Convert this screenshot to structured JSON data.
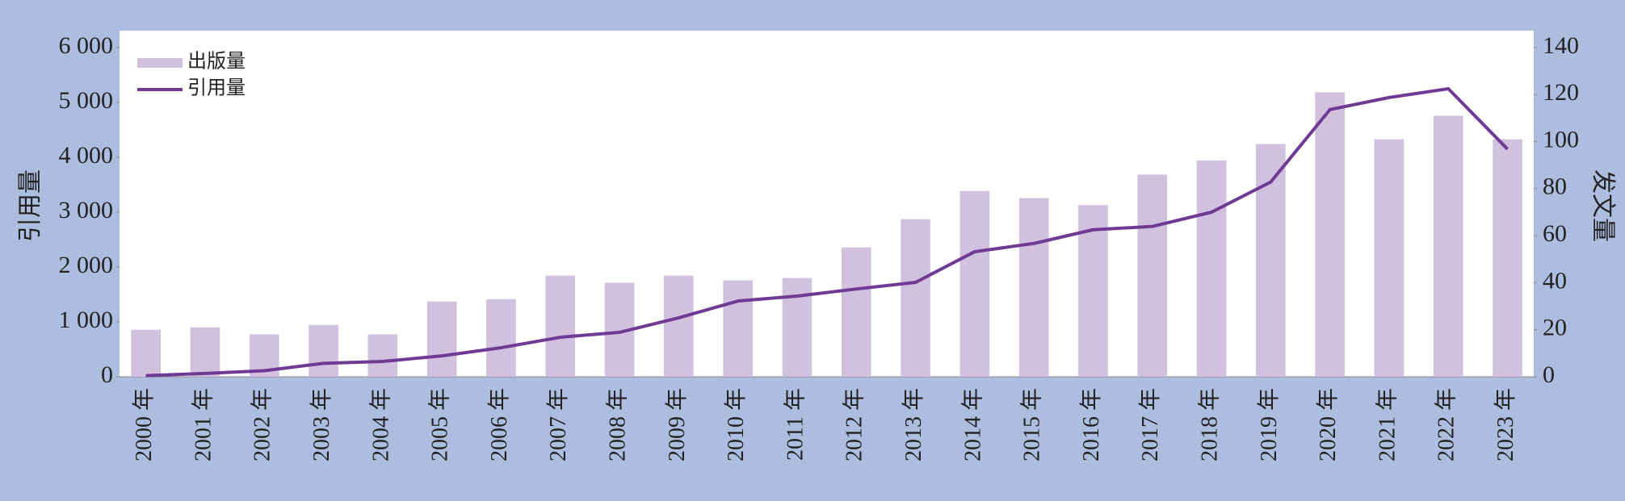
{
  "chart_data": {
    "type": "bar_line",
    "ylabel": "引用量",
    "y2label": "发文量",
    "categories": [
      "2000 年",
      "2001 年",
      "2002 年",
      "2003 年",
      "2004 年",
      "2005 年",
      "2006 年",
      "2007 年",
      "2008 年",
      "2009 年",
      "2010 年",
      "2011 年",
      "2012 年",
      "2013 年",
      "2014 年",
      "2015 年",
      "2016 年",
      "2017 年",
      "2018 年",
      "2019 年",
      "2020 年",
      "2021 年",
      "2022 年",
      "2023 年"
    ],
    "series": [
      {
        "name": "出版量",
        "type": "bar",
        "axis": "y2",
        "color": "#d1c0de",
        "values": [
          20,
          21,
          18,
          22,
          18,
          32,
          33,
          43,
          40,
          43,
          41,
          42,
          55,
          67,
          79,
          76,
          73,
          86,
          92,
          99,
          121,
          101,
          111,
          101
        ]
      },
      {
        "name": "引用量",
        "type": "line",
        "color": "#6e3a94",
        "values": [
          20,
          60,
          110,
          245,
          280,
          380,
          530,
          720,
          810,
          1075,
          1380,
          1470,
          1600,
          1720,
          2280,
          2430,
          2680,
          2740,
          3000,
          3550,
          4870,
          5090,
          5250,
          4150
        ]
      }
    ],
    "ylim": [
      0,
      6000
    ],
    "yticks": [
      0,
      {
        "value": 1000,
        "label": "1 000"
      },
      {
        "value": 2000,
        "label": "2 000"
      },
      {
        "value": 3000,
        "label": "3 000"
      },
      {
        "value": 4000,
        "label": "4 000"
      },
      {
        "value": 5000,
        "label": "5 000"
      },
      {
        "value": 6000,
        "label": "6 000"
      }
    ],
    "y2lim": [
      0,
      140
    ],
    "y2ticks": [
      0,
      20,
      40,
      60,
      80,
      100,
      120,
      140
    ],
    "legend": "top-left"
  }
}
